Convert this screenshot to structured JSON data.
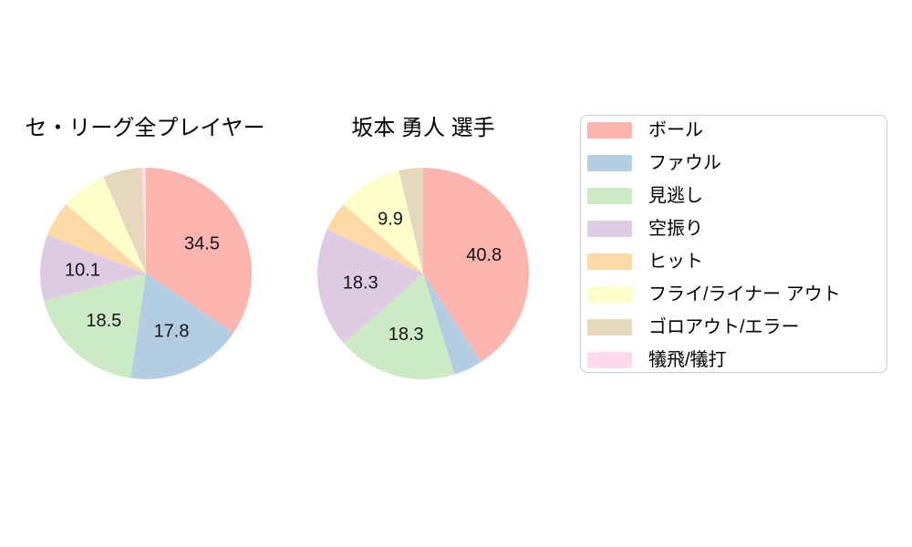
{
  "page": {
    "background_color": "#ffffff",
    "text_color": "#000000"
  },
  "chart_data": [
    {
      "type": "pie",
      "title": "セ・リーグ全プレイヤー",
      "categories": [
        "ボール",
        "ファウル",
        "見逃し",
        "空振り",
        "ヒット",
        "フライ/ライナー アウト",
        "ゴロアウト/エラー",
        "犠飛/犠打"
      ],
      "values": [
        34.5,
        17.8,
        18.5,
        10.1,
        5.5,
        7.0,
        6.0,
        0.6
      ],
      "value_labels": [
        "34.5",
        "17.8",
        "18.5",
        "10.1",
        "",
        "",
        "",
        ""
      ],
      "colors": [
        "#fbb4ae",
        "#b3cde3",
        "#ccebc5",
        "#decbe4",
        "#fed9a6",
        "#ffffcc",
        "#e5d8bd",
        "#fddaec"
      ],
      "start_angle_deg": 0,
      "direction": "clockwise",
      "label_radius_fraction": 0.6,
      "radius_px": 116
    },
    {
      "type": "pie",
      "title": "坂本 勇人 選手",
      "categories": [
        "ボール",
        "ファウル",
        "見逃し",
        "空振り",
        "ヒット",
        "フライ/ライナー アウト",
        "ゴロアウト/エラー",
        "犠飛/犠打"
      ],
      "values": [
        40.8,
        4.4,
        18.3,
        18.3,
        4.6,
        9.9,
        3.7,
        0.0
      ],
      "value_labels": [
        "40.8",
        "",
        "18.3",
        "18.3",
        "",
        "9.9",
        "",
        ""
      ],
      "colors": [
        "#fbb4ae",
        "#b3cde3",
        "#ccebc5",
        "#decbe4",
        "#fed9a6",
        "#ffffcc",
        "#e5d8bd",
        "#fddaec"
      ],
      "start_angle_deg": 0,
      "direction": "clockwise",
      "label_radius_fraction": 0.6,
      "radius_px": 116
    }
  ],
  "legend": {
    "position": "right",
    "border_color": "#cccccc",
    "items": [
      {
        "label": "ボール",
        "color": "#fbb4ae"
      },
      {
        "label": "ファウル",
        "color": "#b3cde3"
      },
      {
        "label": "見逃し",
        "color": "#ccebc5"
      },
      {
        "label": "空振り",
        "color": "#decbe4"
      },
      {
        "label": "ヒット",
        "color": "#fed9a6"
      },
      {
        "label": "フライ/ライナー アウト",
        "color": "#ffffcc"
      },
      {
        "label": "ゴロアウト/エラー",
        "color": "#e5d8bd"
      },
      {
        "label": "犠飛/犠打",
        "color": "#fddaec"
      }
    ]
  }
}
